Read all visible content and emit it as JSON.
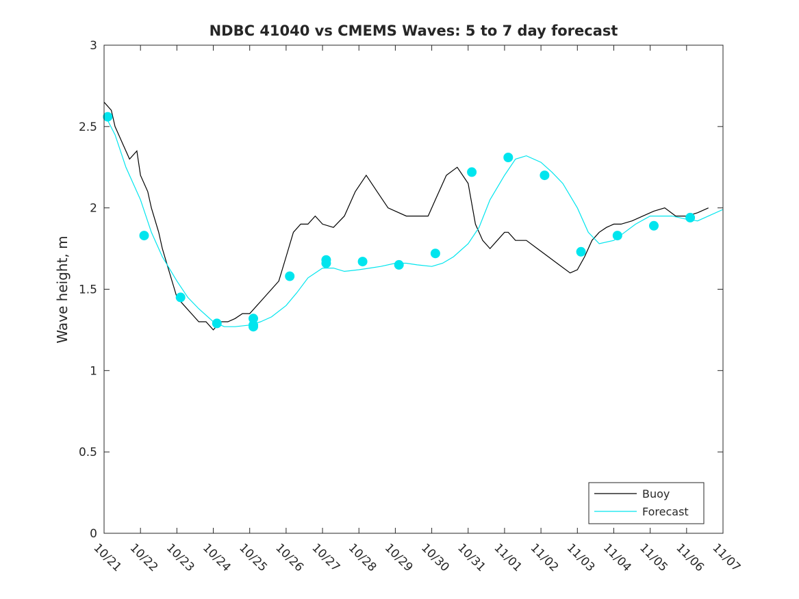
{
  "chart_data": {
    "type": "line",
    "title": "NDBC 41040 vs CMEMS Waves: 5 to 7 day forecast",
    "xlabel": "",
    "ylabel": "Wave height, m",
    "xlim": [
      0,
      17
    ],
    "ylim": [
      0,
      3
    ],
    "grid": false,
    "legend_location": "bottom-right",
    "x_tick_labels": [
      "10/21",
      "10/22",
      "10/23",
      "10/24",
      "10/25",
      "10/26",
      "10/27",
      "10/28",
      "10/29",
      "10/30",
      "10/31",
      "11/01",
      "11/02",
      "11/03",
      "11/04",
      "11/05",
      "11/06",
      "11/07"
    ],
    "y_tick_labels": [
      "0",
      "0.5",
      "1",
      "1.5",
      "2",
      "2.5",
      "3"
    ],
    "y_ticks": [
      0,
      0.5,
      1,
      1.5,
      2,
      2.5,
      3
    ],
    "colors": {
      "buoy": "#000000",
      "forecast": "#00e5ee"
    },
    "series": [
      {
        "name": "Buoy",
        "x": [
          0.0,
          0.2,
          0.3,
          0.5,
          0.7,
          0.9,
          1.0,
          1.2,
          1.3,
          1.5,
          1.6,
          1.8,
          2.0,
          2.2,
          2.4,
          2.6,
          2.8,
          3.0,
          3.2,
          3.4,
          3.6,
          3.8,
          4.0,
          4.2,
          4.4,
          4.6,
          4.8,
          5.0,
          5.2,
          5.4,
          5.6,
          5.8,
          6.0,
          6.3,
          6.6,
          6.9,
          7.2,
          7.5,
          7.8,
          8.0,
          8.3,
          8.6,
          8.9,
          9.1,
          9.4,
          9.7,
          10.0,
          10.2,
          10.4,
          10.6,
          10.8,
          11.0,
          11.1,
          11.3,
          11.6,
          11.9,
          12.2,
          12.5,
          12.8,
          13.0,
          13.2,
          13.4,
          13.6,
          13.8,
          14.0,
          14.2,
          14.5,
          14.8,
          15.1,
          15.4,
          15.7,
          16.0,
          16.3,
          16.6
        ],
        "values": [
          2.65,
          2.6,
          2.5,
          2.4,
          2.3,
          2.35,
          2.2,
          2.1,
          2.0,
          1.85,
          1.75,
          1.6,
          1.45,
          1.4,
          1.35,
          1.3,
          1.3,
          1.25,
          1.3,
          1.3,
          1.32,
          1.35,
          1.35,
          1.4,
          1.45,
          1.5,
          1.55,
          1.7,
          1.85,
          1.9,
          1.9,
          1.95,
          1.9,
          1.88,
          1.95,
          2.1,
          2.2,
          2.1,
          2.0,
          1.98,
          1.95,
          1.95,
          1.95,
          2.05,
          2.2,
          2.25,
          2.15,
          1.9,
          1.8,
          1.75,
          1.8,
          1.85,
          1.85,
          1.8,
          1.8,
          1.75,
          1.7,
          1.65,
          1.6,
          1.62,
          1.7,
          1.8,
          1.85,
          1.88,
          1.9,
          1.9,
          1.92,
          1.95,
          1.98,
          2.0,
          1.95,
          1.95,
          1.97,
          2.0
        ]
      },
      {
        "name": "Forecast",
        "x": [
          0.0,
          0.3,
          0.6,
          1.0,
          1.3,
          1.6,
          2.0,
          2.3,
          2.6,
          3.0,
          3.3,
          3.6,
          4.0,
          4.3,
          4.6,
          5.0,
          5.3,
          5.6,
          6.0,
          6.3,
          6.6,
          7.0,
          7.3,
          7.6,
          8.0,
          8.3,
          8.6,
          9.0,
          9.3,
          9.6,
          10.0,
          10.3,
          10.6,
          11.0,
          11.3,
          11.6,
          12.0,
          12.3,
          12.6,
          13.0,
          13.3,
          13.6,
          14.0,
          14.3,
          14.6,
          15.0,
          15.3,
          15.6,
          16.0,
          16.3,
          16.6,
          17.0
        ],
        "values": [
          2.58,
          2.45,
          2.25,
          2.05,
          1.85,
          1.7,
          1.55,
          1.45,
          1.38,
          1.3,
          1.27,
          1.27,
          1.28,
          1.3,
          1.33,
          1.4,
          1.48,
          1.57,
          1.63,
          1.63,
          1.61,
          1.62,
          1.63,
          1.64,
          1.66,
          1.66,
          1.65,
          1.64,
          1.66,
          1.7,
          1.78,
          1.88,
          2.05,
          2.2,
          2.3,
          2.32,
          2.28,
          2.22,
          2.15,
          2.0,
          1.85,
          1.78,
          1.8,
          1.85,
          1.9,
          1.95,
          1.95,
          1.95,
          1.93,
          1.92,
          1.95,
          1.99
        ]
      }
    ],
    "forecast_markers": {
      "x": [
        0.1,
        1.1,
        2.1,
        3.1,
        4.1,
        4.1,
        4.1,
        5.1,
        6.1,
        6.1,
        7.1,
        8.1,
        9.1,
        10.1,
        11.1,
        12.1,
        13.1,
        14.1,
        15.1,
        16.1
      ],
      "values": [
        2.56,
        1.83,
        1.45,
        1.29,
        1.27,
        1.32,
        1.28,
        1.58,
        1.68,
        1.66,
        1.67,
        1.65,
        1.72,
        2.22,
        2.31,
        2.2,
        1.73,
        1.83,
        1.89,
        1.94
      ]
    }
  },
  "legend": {
    "buoy_label": "Buoy",
    "forecast_label": "Forecast"
  }
}
